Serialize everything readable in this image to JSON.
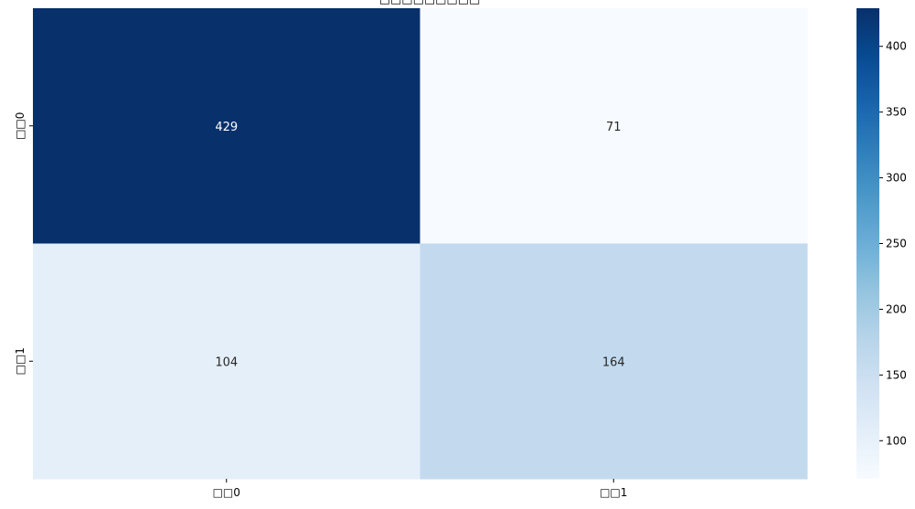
{
  "chart_data": {
    "type": "heatmap",
    "title": "□□□□□□□□□",
    "x_categories": [
      "□□0",
      "□□1"
    ],
    "y_categories": [
      "□□0",
      "□□1"
    ],
    "values": [
      [
        429,
        71
      ],
      [
        104,
        164
      ]
    ],
    "colormap": "Blues",
    "colorbar": {
      "min": 71,
      "max": 429,
      "ticks": [
        100,
        150,
        200,
        250,
        300,
        350,
        400
      ]
    },
    "annotations": true,
    "grid": false
  }
}
